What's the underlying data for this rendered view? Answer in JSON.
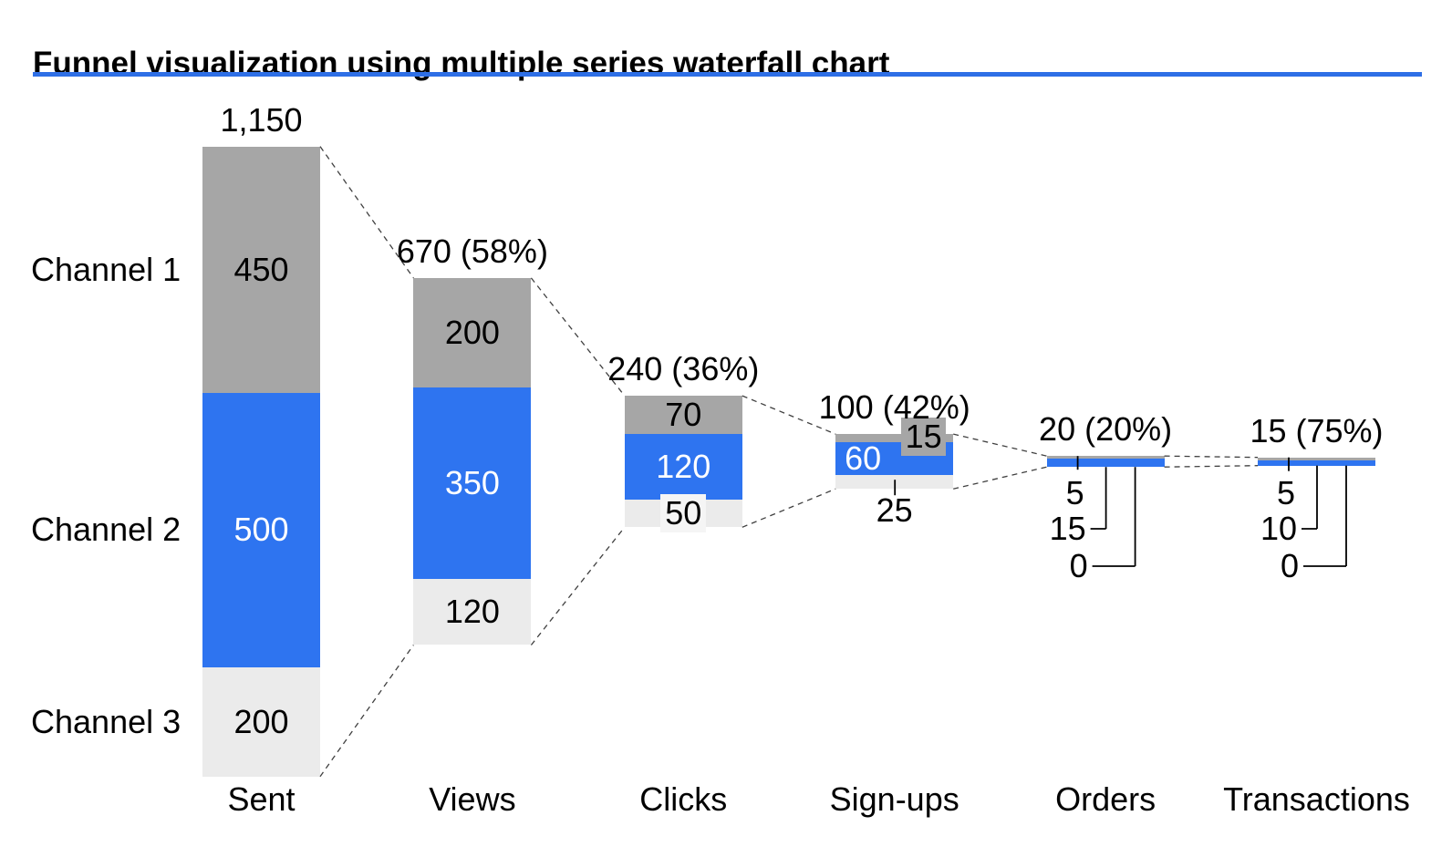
{
  "header": {
    "title": "Funnel visualization using multiple series waterfall chart"
  },
  "colors": {
    "blue": "#2E74F0",
    "gray": "#A6A6A6",
    "lightgray": "#EBEBEB",
    "callout_lightgray": "#F5F5F5",
    "title_rule": "#2E6FE6",
    "connector": "#404040",
    "leader": "#000000",
    "label_on_blue": "#FFFFFF",
    "label_default": "#000000"
  },
  "chart_data": {
    "type": "bar",
    "subtype": "stacked-waterfall-funnel",
    "title": "Funnel visualization using multiple series waterfall chart",
    "categories": [
      "Sent",
      "Views",
      "Clicks",
      "Sign-ups",
      "Orders",
      "Transactions"
    ],
    "series": [
      {
        "name": "Channel 1",
        "color": "gray",
        "values": [
          450,
          200,
          70,
          15,
          5,
          5
        ]
      },
      {
        "name": "Channel 2",
        "color": "blue",
        "values": [
          500,
          350,
          120,
          60,
          15,
          10
        ]
      },
      {
        "name": "Channel 3",
        "color": "lightgray",
        "values": [
          200,
          120,
          50,
          25,
          0,
          0
        ]
      }
    ],
    "totals": [
      1150,
      670,
      240,
      100,
      20,
      15
    ],
    "total_labels": [
      "1,150",
      "670 (58%)",
      "240 (36%)",
      "100 (42%)",
      "20 (20%)",
      "15 (75%)"
    ],
    "segment_labels": [
      [
        "450",
        "500",
        "200"
      ],
      [
        "200",
        "350",
        "120"
      ],
      [
        "70",
        "120",
        "50"
      ],
      [
        "15",
        "60",
        "25"
      ],
      [
        "5",
        "15",
        "0"
      ],
      [
        "5",
        "10",
        "0"
      ]
    ],
    "row_labels": [
      "Channel 1",
      "Channel 2",
      "Channel 3"
    ],
    "xlabel": "",
    "ylabel": "",
    "axes": "hidden",
    "gridlines": false,
    "legend_position": "left-of-first-bar",
    "connector_style": "dashed-top-and-bottom-edges",
    "bars_vertically_centered": true
  }
}
